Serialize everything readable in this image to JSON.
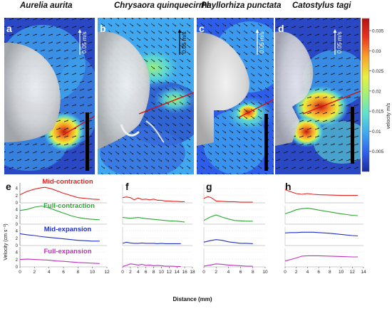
{
  "species": [
    "Aurelia aurita",
    "Chrysaora quinquecirrha",
    "Phyllorhiza punctata",
    "Catostylus tagi"
  ],
  "top_panel_letters": [
    "a",
    "b",
    "c",
    "d"
  ],
  "scale_arrow_label": "0.05 m/s",
  "colorbar": {
    "label": "velocity m/s",
    "ticks": [
      "0.005",
      "0.01",
      "0.015",
      "0.02",
      "0.025",
      "0.03",
      "0.035"
    ],
    "range": [
      0,
      0.038
    ],
    "colors": [
      "#1a2a9e",
      "#2e5ee8",
      "#3fa8f0",
      "#5fe0d0",
      "#9ef07a",
      "#e8f040",
      "#f8a22a",
      "#e8321e",
      "#b01414"
    ]
  },
  "chart_data": {
    "type": "line",
    "ylabel": "Velocity (cm s⁻¹)",
    "xlabel": "Distance (mm)",
    "phases": [
      {
        "name": "Mid-contraction",
        "color": "#e8221e"
      },
      {
        "name": "Full-contraction",
        "color": "#2aa830"
      },
      {
        "name": "Mid-expansion",
        "color": "#1f2fc8"
      },
      {
        "name": "Full-expansion",
        "color": "#c030c0"
      }
    ],
    "y_ticks": [
      "0",
      "2",
      "4"
    ],
    "y_ticks_bottom": [
      "0",
      "2",
      "4"
    ],
    "ylim": [
      0,
      5
    ],
    "panels": [
      {
        "letter": "e",
        "xlim": [
          0,
          12
        ],
        "x_ticks": [
          "0",
          "2",
          "4",
          "6",
          "8",
          "10",
          "12"
        ],
        "series": [
          {
            "x": [
              0,
              1,
              2,
              3,
              3.5,
              4.5,
              6,
              8,
              10,
              11
            ],
            "y": [
              2.2,
              3.1,
              3.7,
              4.1,
              4.2,
              3.7,
              2.6,
              1.4,
              1.0,
              0.9
            ]
          },
          {
            "x": [
              0,
              1,
              2,
              3,
              4,
              5,
              6,
              7,
              8,
              9,
              10,
              11
            ],
            "y": [
              3.7,
              4.0,
              4.6,
              4.9,
              4.4,
              3.7,
              3.0,
              2.3,
              1.8,
              1.5,
              1.3,
              1.2
            ]
          },
          {
            "x": [
              0,
              1,
              2,
              3,
              4,
              5,
              6,
              8,
              10,
              11
            ],
            "y": [
              3.2,
              2.9,
              2.7,
              2.4,
              2.2,
              2.0,
              1.8,
              1.4,
              1.2,
              1.2
            ]
          },
          {
            "x": [
              0,
              1,
              2,
              3,
              4,
              5,
              6,
              8,
              10,
              11
            ],
            "y": [
              2.0,
              2.1,
              2.0,
              1.9,
              1.8,
              1.6,
              1.5,
              1.2,
              1.0,
              0.9
            ]
          }
        ]
      },
      {
        "letter": "f",
        "xlim": [
          0,
          18
        ],
        "x_ticks": [
          "0",
          "2",
          "4",
          "6",
          "8",
          "10",
          "12",
          "14",
          "16",
          "18"
        ],
        "series": [
          {
            "x": [
              0,
              1,
              2,
              3,
              4,
              5,
              6,
              7,
              8,
              9,
              10,
              11,
              12,
              13,
              14,
              15,
              16
            ],
            "y": [
              1.4,
              1.6,
              1.4,
              0.8,
              1.3,
              0.9,
              1.0,
              0.8,
              1.0,
              0.7,
              0.7,
              0.5,
              0.5,
              0.4,
              0.4,
              0.3,
              0.3
            ]
          },
          {
            "x": [
              0,
              2,
              4,
              6,
              8,
              10,
              12,
              14,
              16
            ],
            "y": [
              1.8,
              1.6,
              1.8,
              1.5,
              1.3,
              1.1,
              0.9,
              0.8,
              0.6
            ]
          },
          {
            "x": [
              0,
              1,
              2,
              3,
              4,
              5,
              6,
              7,
              8,
              9,
              10,
              11,
              12,
              13,
              14,
              15
            ],
            "y": [
              0.6,
              0.9,
              0.7,
              0.6,
              0.6,
              0.7,
              0.6,
              0.6,
              0.6,
              0.5,
              0.6,
              0.5,
              0.5,
              0.5,
              0.5,
              0.5
            ]
          },
          {
            "x": [
              0,
              1,
              2,
              3,
              4,
              5,
              6,
              7,
              8,
              9,
              10,
              11,
              12,
              13,
              14,
              15
            ],
            "y": [
              0.1,
              0.4,
              0.8,
              0.7,
              0.5,
              0.7,
              0.4,
              0.5,
              0.3,
              0.4,
              0.3,
              0.2,
              0.2,
              0.2,
              0.1,
              0.1
            ]
          }
        ]
      },
      {
        "letter": "g",
        "xlim": [
          0,
          10
        ],
        "x_ticks": [
          "0",
          "2",
          "4",
          "6",
          "8",
          "10"
        ],
        "series": [
          {
            "x": [
              0,
              0.7,
              1.2,
              2,
              3,
              4,
              5,
              6,
              7,
              8
            ],
            "y": [
              1.2,
              1.7,
              1.4,
              0.5,
              0.4,
              0.3,
              0.3,
              0.2,
              0.2,
              0.2
            ]
          },
          {
            "x": [
              0,
              1,
              2,
              3,
              4,
              5,
              6,
              7,
              8
            ],
            "y": [
              1.0,
              1.9,
              2.5,
              1.9,
              1.4,
              1.0,
              0.9,
              0.8,
              0.8
            ]
          },
          {
            "x": [
              0,
              1,
              2,
              3,
              4,
              5,
              6,
              7,
              8
            ],
            "y": [
              0.9,
              1.3,
              1.6,
              1.4,
              1.0,
              0.8,
              0.6,
              0.6,
              0.5
            ]
          },
          {
            "x": [
              0,
              1,
              2,
              3,
              4,
              5,
              6,
              7,
              8
            ],
            "y": [
              0.2,
              0.5,
              0.8,
              0.7,
              0.5,
              0.4,
              0.3,
              0.2,
              0.2
            ]
          }
        ]
      },
      {
        "letter": "h",
        "xlim": [
          0,
          14
        ],
        "x_ticks": [
          "0",
          "2",
          "4",
          "6",
          "8",
          "10",
          "12",
          "14"
        ],
        "series": [
          {
            "x": [
              0,
              1,
              2,
              3,
              4,
              5,
              6,
              8,
              10,
              12,
              13
            ],
            "y": [
              3.6,
              3.0,
              2.5,
              2.3,
              2.5,
              2.3,
              2.2,
              2.1,
              2.0,
              2.0,
              2.0
            ]
          },
          {
            "x": [
              0,
              1,
              2,
              3,
              4,
              5,
              6,
              8,
              10,
              12,
              13
            ],
            "y": [
              2.8,
              3.3,
              3.9,
              4.2,
              4.3,
              4.1,
              3.8,
              3.3,
              2.8,
              2.4,
              2.3
            ]
          },
          {
            "x": [
              0,
              1,
              2,
              3,
              4,
              5,
              6,
              8,
              10,
              12,
              13
            ],
            "y": [
              3.4,
              3.5,
              3.5,
              3.6,
              3.6,
              3.6,
              3.5,
              3.3,
              3.0,
              2.7,
              2.6
            ]
          },
          {
            "x": [
              0,
              1,
              2,
              3,
              4,
              5,
              6,
              8,
              10,
              12,
              13
            ],
            "y": [
              1.6,
              2.0,
              2.4,
              2.9,
              3.0,
              3.0,
              3.0,
              2.9,
              2.8,
              2.7,
              2.7
            ]
          }
        ]
      }
    ]
  }
}
